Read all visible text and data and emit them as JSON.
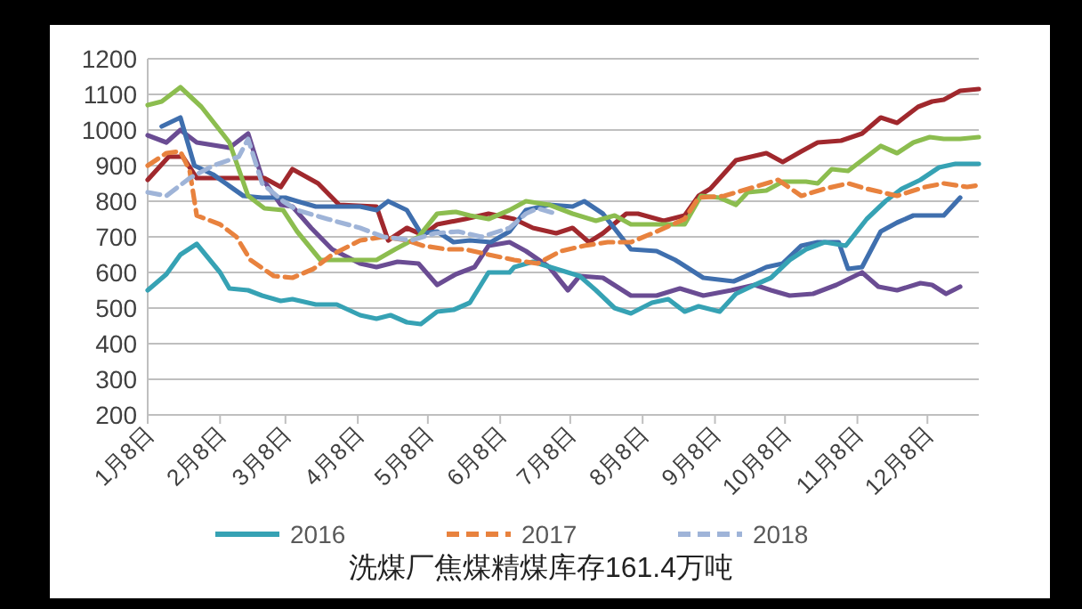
{
  "chart_data": {
    "type": "line",
    "line_style": "solid",
    "grid": "y",
    "legend": "bottom",
    "xlim": [
      "--01-08",
      "--12-30"
    ],
    "ylim": [
      200,
      1200
    ],
    "xticks": [
      {
        "value": "--01-08",
        "label": "1月8日"
      },
      {
        "value": "--02-08",
        "label": "2月8日"
      },
      {
        "value": "--03-08",
        "label": "3月8日"
      },
      {
        "value": "--04-08",
        "label": "4月8日"
      },
      {
        "value": "--05-08",
        "label": "5月8日"
      },
      {
        "value": "--06-08",
        "label": "6月8日"
      },
      {
        "value": "--07-08",
        "label": "7月8日"
      },
      {
        "value": "--08-08",
        "label": "8月8日"
      },
      {
        "value": "--09-08",
        "label": "9月8日"
      },
      {
        "value": "--10-08",
        "label": "10月8日"
      },
      {
        "value": "--11-08",
        "label": "11月8日"
      },
      {
        "value": "--12-08",
        "label": "12月8日"
      }
    ],
    "yticks": [
      200,
      300,
      400,
      500,
      600,
      700,
      800,
      900,
      1000,
      1100,
      1200
    ],
    "annotations": [
      "洗煤厂焦煤精煤库存161.4万吨"
    ],
    "series": [
      {
        "color": "#6a4c93",
        "x": [
          "--01-08",
          "--01-16",
          "--01-22",
          "--01-29",
          "--02-12",
          "--02-20",
          "--02-26",
          "--03-06",
          "--03-11",
          "--03-19",
          "--03-28",
          "--04-09",
          "--04-16",
          "--04-25",
          "--05-04",
          "--05-12",
          "--05-20",
          "--05-28",
          "--06-03",
          "--06-12",
          "--06-19",
          "--06-29",
          "--07-07",
          "--07-12",
          "--07-22",
          "--08-03",
          "--08-14",
          "--08-24",
          "--09-03",
          "--09-15",
          "--09-25",
          "--10-02",
          "--10-10",
          "--10-20",
          "--10-30",
          "--11-10",
          "--11-17",
          "--11-25",
          "--12-05",
          "--12-10",
          "--12-16",
          "--12-22"
        ],
        "values": [
          985,
          965,
          1000,
          965,
          950,
          990,
          865,
          790,
          785,
          725,
          665,
          625,
          615,
          630,
          625,
          565,
          595,
          615,
          675,
          685,
          660,
          615,
          550,
          590,
          585,
          535,
          535,
          555,
          535,
          550,
          565,
          550,
          535,
          540,
          565,
          600,
          560,
          550,
          570,
          565,
          540,
          560
        ]
      },
      {
        "color": "#a0282d",
        "x": [
          "--01-08",
          "--01-17",
          "--01-23",
          "--01-29",
          "--02-13",
          "--02-27",
          "--03-06",
          "--03-11",
          "--03-22",
          "--03-31",
          "--04-16",
          "--04-21",
          "--04-29",
          "--05-06",
          "--05-12",
          "--05-24",
          "--06-03",
          "--06-14",
          "--06-22",
          "--07-02",
          "--07-09",
          "--07-16",
          "--07-22",
          "--08-01",
          "--08-06",
          "--08-17",
          "--08-26",
          "--09-01",
          "--09-06",
          "--09-17",
          "--09-30",
          "--10-07",
          "--10-15",
          "--10-22",
          "--11-01",
          "--11-10",
          "--11-18",
          "--11-25",
          "--12-04",
          "--12-10",
          "--12-15",
          "--12-22",
          "--12-30"
        ],
        "values": [
          860,
          925,
          925,
          865,
          865,
          865,
          840,
          890,
          850,
          790,
          785,
          690,
          725,
          705,
          735,
          750,
          765,
          750,
          725,
          710,
          725,
          685,
          710,
          765,
          765,
          745,
          760,
          815,
          835,
          915,
          935,
          910,
          940,
          965,
          970,
          990,
          1035,
          1020,
          1065,
          1080,
          1085,
          1110,
          1115
        ]
      },
      {
        "color": "#3f6fae",
        "x": [
          "--01-14",
          "--01-22",
          "--01-28",
          "--02-05",
          "--02-18",
          "--02-26",
          "--03-08",
          "--03-13",
          "--03-21",
          "--03-28",
          "--04-09",
          "--04-16",
          "--04-21",
          "--04-29",
          "--05-05",
          "--05-12",
          "--05-19",
          "--05-26",
          "--06-04",
          "--06-12",
          "--06-19",
          "--06-29",
          "--07-09",
          "--07-14",
          "--07-22",
          "--08-03",
          "--08-14",
          "--08-22",
          "--09-03",
          "--09-16",
          "--09-25",
          "--09-30",
          "--10-07",
          "--10-15",
          "--10-22",
          "--10-31",
          "--11-04",
          "--11-10",
          "--11-18",
          "--11-25",
          "--12-02",
          "--12-15",
          "--12-22"
        ],
        "values": [
          1010,
          1035,
          900,
          875,
          815,
          810,
          810,
          800,
          785,
          785,
          785,
          775,
          800,
          775,
          710,
          715,
          685,
          690,
          685,
          715,
          775,
          790,
          785,
          800,
          765,
          665,
          660,
          635,
          585,
          575,
          600,
          615,
          625,
          675,
          685,
          685,
          610,
          615,
          715,
          740,
          760,
          760,
          810
        ]
      },
      {
        "color": "#8cbd4f",
        "x": [
          "--01-08",
          "--01-14",
          "--01-22",
          "--01-31",
          "--02-12",
          "--02-20",
          "--02-27",
          "--03-07",
          "--03-13",
          "--03-23",
          "--04-16",
          "--04-24",
          "--05-04",
          "--05-12",
          "--05-20",
          "--05-26",
          "--06-03",
          "--06-12",
          "--06-19",
          "--06-29",
          "--07-09",
          "--07-19",
          "--07-27",
          "--08-03",
          "--08-26",
          "--09-02",
          "--09-10",
          "--09-17",
          "--09-22",
          "--09-30",
          "--10-07",
          "--10-17",
          "--10-22",
          "--10-28",
          "--11-04",
          "--11-12",
          "--11-18",
          "--11-25",
          "--12-02",
          "--12-09",
          "--12-15",
          "--12-22",
          "--12-30"
        ],
        "values": [
          1070,
          1080,
          1120,
          1065,
          965,
          815,
          780,
          775,
          715,
          635,
          635,
          665,
          700,
          765,
          770,
          760,
          750,
          775,
          800,
          790,
          765,
          745,
          760,
          735,
          735,
          815,
          810,
          790,
          825,
          830,
          855,
          855,
          850,
          890,
          885,
          925,
          955,
          935,
          965,
          980,
          975,
          975,
          980
        ]
      },
      {
        "name": "2016",
        "color": "#36a2b4",
        "x": [
          "--01-08",
          "--01-16",
          "--01-22",
          "--01-29",
          "--02-08",
          "--02-12",
          "--02-20",
          "--02-26",
          "--03-06",
          "--03-11",
          "--03-21",
          "--03-30",
          "--04-09",
          "--04-16",
          "--04-22",
          "--04-29",
          "--05-05",
          "--05-12",
          "--05-19",
          "--05-26",
          "--06-03",
          "--06-12",
          "--06-14",
          "--06-22",
          "--07-02",
          "--07-12",
          "--07-19",
          "--07-27",
          "--08-03",
          "--08-12",
          "--08-19",
          "--08-26",
          "--09-01",
          "--09-10",
          "--09-17",
          "--09-25",
          "--10-02",
          "--10-10",
          "--10-17",
          "--10-25",
          "--11-03",
          "--11-12",
          "--11-20",
          "--11-27",
          "--12-05",
          "--12-13",
          "--12-20",
          "--12-30"
        ],
        "values": [
          550,
          595,
          650,
          680,
          600,
          555,
          550,
          535,
          520,
          525,
          510,
          510,
          480,
          470,
          480,
          460,
          455,
          490,
          495,
          515,
          600,
          600,
          615,
          630,
          610,
          590,
          550,
          500,
          485,
          515,
          525,
          490,
          505,
          490,
          540,
          565,
          585,
          635,
          665,
          685,
          675,
          750,
          800,
          835,
          860,
          895,
          905,
          905
        ]
      },
      {
        "name": "2017",
        "color": "#e8823e",
        "line_style": "dashed",
        "x": [
          "--01-08",
          "--01-16",
          "--01-22",
          "--01-26",
          "--01-29",
          "--02-08",
          "--02-15",
          "--02-21",
          "--03-03",
          "--03-11",
          "--03-20",
          "--03-28",
          "--04-09",
          "--04-19",
          "--04-29",
          "--05-06",
          "--05-16",
          "--05-24",
          "--06-03",
          "--06-14",
          "--06-24",
          "--07-04",
          "--07-14",
          "--07-24",
          "--08-03",
          "--08-14",
          "--08-26",
          "--09-01",
          "--09-12",
          "--09-25",
          "--10-05",
          "--10-15",
          "--10-25",
          "--11-04",
          "--11-12",
          "--11-25",
          "--12-07",
          "--12-15",
          "--12-25",
          "--12-30"
        ],
        "values": [
          900,
          935,
          940,
          885,
          760,
          735,
          700,
          635,
          590,
          585,
          610,
          650,
          690,
          700,
          690,
          675,
          665,
          665,
          650,
          635,
          625,
          660,
          675,
          685,
          685,
          715,
          750,
          810,
          815,
          840,
          860,
          815,
          835,
          850,
          835,
          815,
          840,
          850,
          840,
          845
        ]
      },
      {
        "name": "2018",
        "color": "#9fb4d8",
        "line_style": "dashed",
        "x": [
          "--01-08",
          "--01-16",
          "--01-26",
          "--02-05",
          "--02-16",
          "--02-20",
          "--02-26",
          "--03-07",
          "--03-13",
          "--03-26",
          "--04-09",
          "--04-19",
          "--05-01",
          "--05-11",
          "--05-21",
          "--05-31",
          "--06-12",
          "--06-19",
          "--06-24",
          "--07-02"
        ],
        "values": [
          825,
          815,
          865,
          900,
          925,
          975,
          850,
          800,
          775,
          750,
          725,
          700,
          690,
          710,
          715,
          700,
          725,
          765,
          780,
          765
        ]
      }
    ]
  }
}
